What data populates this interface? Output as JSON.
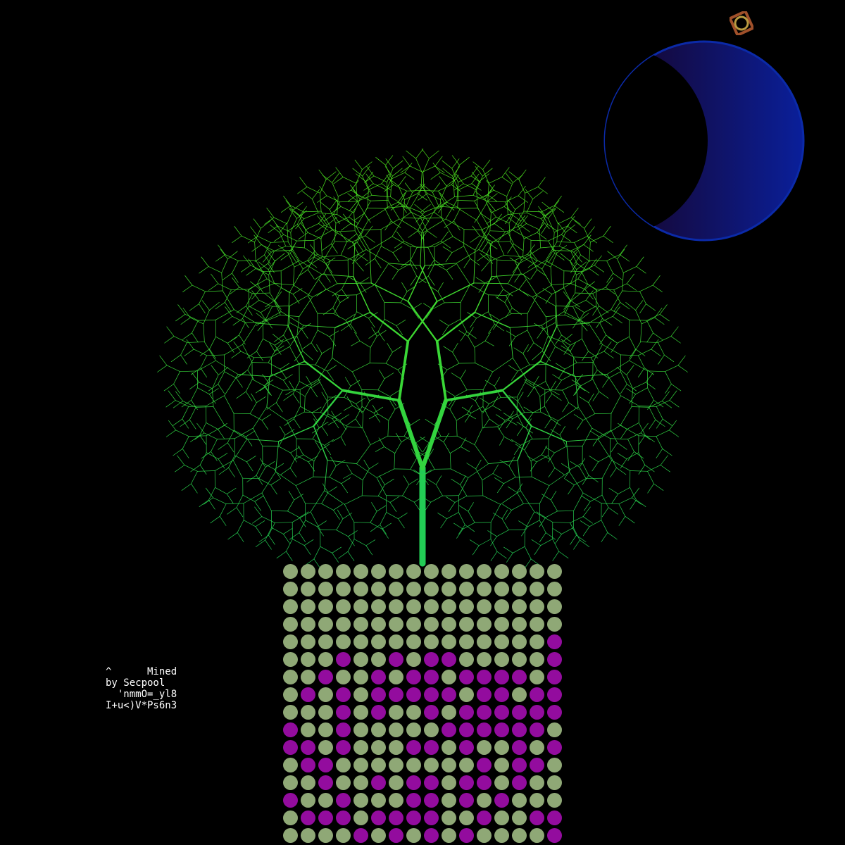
{
  "caption": {
    "lines": [
      "^      Mined",
      "by Secpool",
      "  'nmmO=_yl8",
      "I+u<)V*Ps6n3"
    ]
  },
  "colors": {
    "background": "#000000",
    "dot_green": "#8fa876",
    "dot_purple": "#930c9e",
    "tree_top": "#4ee01a",
    "tree_bottom": "#22cc55",
    "moon_blue": "#0a1f9a",
    "moon_rim": "#0b2aa8"
  },
  "icons": {
    "top_right": "ornament-ring-icon"
  },
  "dot_grid": {
    "rows": [
      "0000000000000000",
      "0000000000000000",
      "0000000000000000",
      "0000000000000000",
      "0000000000000001",
      "0001001011000001",
      "0010010110111101",
      "0101011111011011",
      "0001010010111111",
      "1001000001111110",
      "1101000110100101",
      "0110000000010110",
      "0010010110110100",
      "1001000110101000",
      "0111011110010011",
      "0000101010100001"
    ]
  }
}
